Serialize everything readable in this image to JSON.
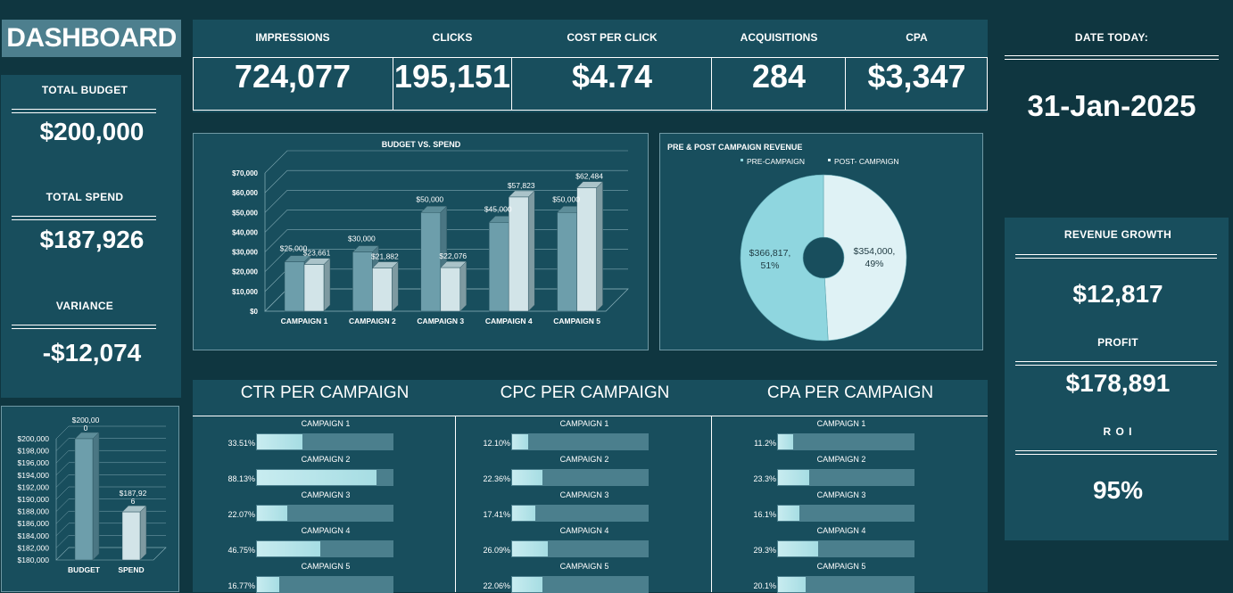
{
  "title": "DASHBOARD",
  "left_panel": {
    "total_budget_label": "TOTAL BUDGET",
    "total_budget_value": "$200,000",
    "total_spend_label": "TOTAL SPEND",
    "total_spend_value": "$187,926",
    "variance_label": "VARIANCE",
    "variance_value": "-$12,074"
  },
  "kpis": [
    {
      "label": "IMPRESSIONS",
      "value": "724,077"
    },
    {
      "label": "CLICKS",
      "value": "195,151"
    },
    {
      "label": "COST PER CLICK",
      "value": "$4.74"
    },
    {
      "label": "ACQUISITIONS",
      "value": "284"
    },
    {
      "label": "CPA",
      "value": "$3,347"
    }
  ],
  "date_panel": {
    "label": "DATE TODAY:",
    "value": "31-Jan-2025"
  },
  "right_panel": {
    "revenue_growth_label": "REVENUE GROWTH",
    "revenue_growth_value": "$12,817",
    "profit_label": "PROFIT",
    "profit_value": "$178,891",
    "roi_label": "R O I",
    "roi_value": "95%"
  },
  "per_campaign": {
    "ctr_title": "CTR PER CAMPAIGN",
    "cpc_title": "CPC PER CAMPAIGN",
    "cpa_title": "CPA PER CAMPAIGN",
    "campaigns": [
      "CAMPAIGN 1",
      "CAMPAIGN 2",
      "CAMPAIGN 3",
      "CAMPAIGN 4",
      "CAMPAIGN 5"
    ],
    "ctr": {
      "labels": [
        "33.51%",
        "88.13%",
        "22.07%",
        "46.75%",
        "16.77%"
      ],
      "values": [
        0.3351,
        0.8813,
        0.2207,
        0.4675,
        0.1677
      ]
    },
    "cpc": {
      "labels": [
        "12.10%",
        "22.36%",
        "17.41%",
        "26.09%",
        "22.06%"
      ],
      "values": [
        0.121,
        0.2236,
        0.1741,
        0.2609,
        0.2206
      ]
    },
    "cpa": {
      "labels": [
        "11.2%",
        "23.3%",
        "16.1%",
        "29.3%",
        "20.1%"
      ],
      "values": [
        0.112,
        0.233,
        0.161,
        0.293,
        0.201
      ]
    }
  },
  "colors": {
    "background": "#0f3640",
    "panel": "#184e5d",
    "budget_bar": "#6d9eab",
    "spend_bar": "#d2e4e8",
    "pre_campaign": "#8fd6df",
    "post_campaign": "#dff2f5",
    "progress_track": "#4b7f8d",
    "progress_fill": "#b5e4ea"
  },
  "chart_data": [
    {
      "type": "bar",
      "title": "BUDGET VS. SPEND",
      "categories": [
        "CAMPAIGN 1",
        "CAMPAIGN 2",
        "CAMPAIGN 3",
        "CAMPAIGN 4",
        "CAMPAIGN 5"
      ],
      "series": [
        {
          "values": [
            25000,
            30000,
            50000,
            45000,
            50000
          ],
          "labels": [
            "$25,000",
            "$30,000",
            "$50,000",
            "$45,000",
            "$50,000"
          ]
        },
        {
          "values": [
            23661,
            21882,
            22076,
            57823,
            62484
          ],
          "labels": [
            "$23,661",
            "$21,882",
            "$22,076",
            "$57,823",
            "$62,484"
          ]
        }
      ],
      "yticks": [
        "$0",
        "$10,000",
        "$20,000",
        "$30,000",
        "$40,000",
        "$50,000",
        "$60,000",
        "$70,000"
      ],
      "ylim": [
        0,
        70000
      ],
      "grid": true,
      "style": "3d"
    },
    {
      "type": "pie",
      "title": "PRE & POST CAMPAIGN REVENUE",
      "legend": [
        "PRE-CAMPAIGN",
        "POST- CAMPAIGN"
      ],
      "legend_position": "top",
      "slices": [
        {
          "value": 366817,
          "label": "$366,817,",
          "pct": "51%"
        },
        {
          "value": 354000,
          "label": "$354,000,",
          "pct": "49%"
        }
      ]
    },
    {
      "type": "bar",
      "categories": [
        "BUDGET",
        "SPEND"
      ],
      "values": [
        200000,
        187926
      ],
      "value_labels": [
        [
          "$200,00",
          "0"
        ],
        [
          "$187,92",
          "6"
        ]
      ],
      "yticks": [
        "$180,000",
        "$182,000",
        "$184,000",
        "$186,000",
        "$188,000",
        "$190,000",
        "$192,000",
        "$194,000",
        "$196,000",
        "$198,000",
        "$200,000"
      ],
      "ylim": [
        180000,
        200000
      ],
      "grid": true,
      "style": "3d"
    }
  ]
}
